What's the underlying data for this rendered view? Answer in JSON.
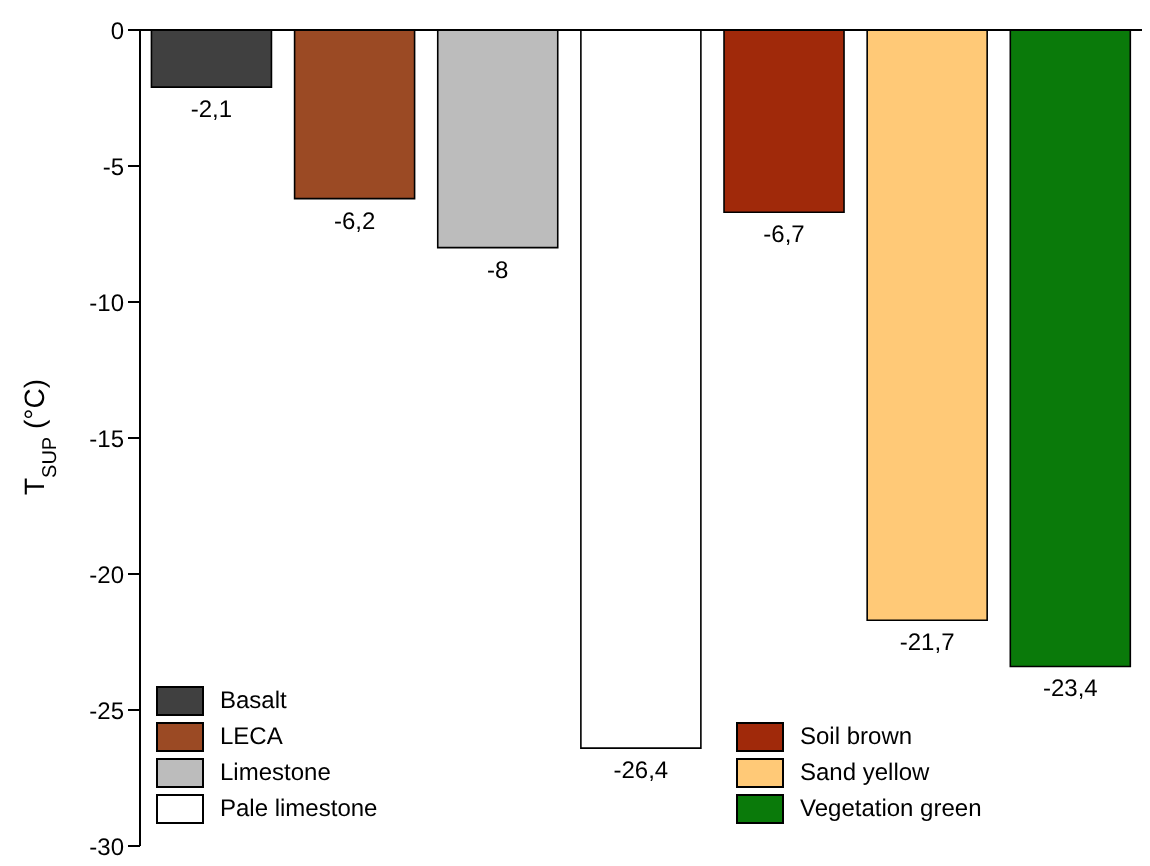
{
  "chart_data": {
    "type": "bar",
    "ylabel": "T$_{SUP}$ (°C)",
    "categories": [
      null,
      null,
      null,
      null,
      null,
      null,
      null
    ],
    "stacked": true,
    "ylim": [
      -30,
      0
    ],
    "yticks": [
      -30,
      -25,
      -20,
      -15,
      -10,
      -5,
      0
    ],
    "legend": "bottom",
    "series": [
      {
        "name": "Basalt",
        "color": "#404040",
        "values": [
          -2.1,
          null,
          null,
          null,
          null,
          null,
          null
        ],
        "value_labels": [
          "-2,1",
          null,
          null,
          null,
          null,
          null,
          null
        ]
      },
      {
        "name": "LECA",
        "color": "#9b4a24",
        "values": [
          null,
          -6.2,
          null,
          null,
          null,
          null,
          null
        ],
        "value_labels": [
          null,
          "-6,2",
          null,
          null,
          null,
          null,
          null
        ]
      },
      {
        "name": "Limestone",
        "color": "#bcbcbc",
        "values": [
          null,
          null,
          -8,
          null,
          null,
          null,
          null
        ],
        "value_labels": [
          null,
          null,
          "-8",
          null,
          null,
          null,
          null
        ]
      },
      {
        "name": "Pale limestone",
        "color": "#ffffff",
        "values": [
          null,
          null,
          null,
          -26.4,
          null,
          null,
          null
        ],
        "value_labels": [
          null,
          null,
          null,
          "-26,4",
          null,
          null,
          null
        ]
      },
      {
        "name": "Soil brown",
        "color": "#a0290a",
        "values": [
          null,
          null,
          null,
          null,
          -6.7,
          null,
          null
        ],
        "value_labels": [
          null,
          null,
          null,
          null,
          "-6,7",
          null,
          null
        ]
      },
      {
        "name": "Sand yellow",
        "color": "#ffc977",
        "values": [
          null,
          null,
          null,
          null,
          null,
          -21.7,
          null
        ],
        "value_labels": [
          null,
          null,
          null,
          null,
          null,
          "-21,7",
          null
        ]
      },
      {
        "name": "Vegetation green",
        "color": "#0a7a0a",
        "values": [
          null,
          null,
          null,
          null,
          null,
          null,
          -23.4
        ],
        "value_labels": [
          null,
          null,
          null,
          null,
          null,
          null,
          "-23,4"
        ]
      }
    ]
  }
}
